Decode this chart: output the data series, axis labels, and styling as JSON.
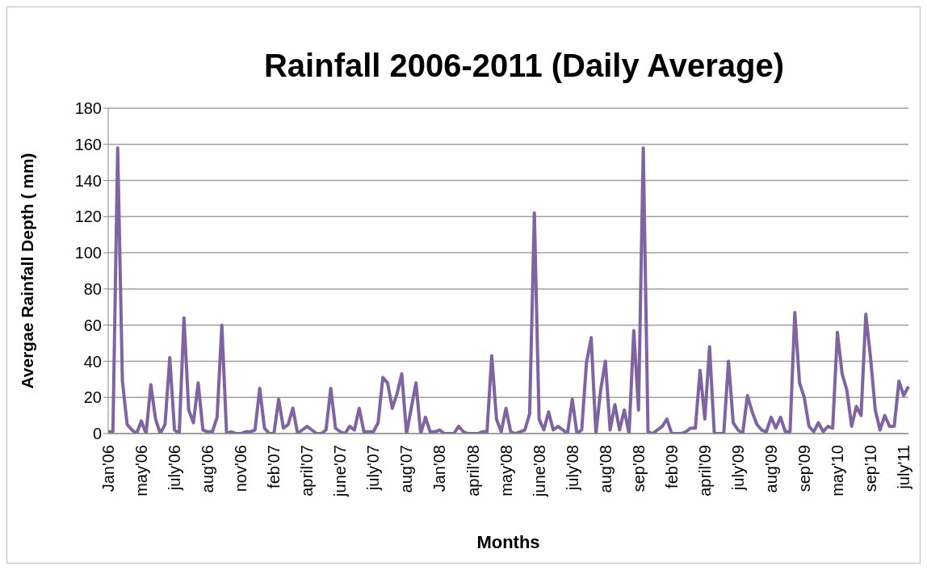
{
  "chart_data": {
    "type": "line",
    "title": "Rainfall 2006-2011 (Daily Average)",
    "xlabel": "Months",
    "ylabel": "Avergae Rainfall Depth  ( mm)",
    "categories": [
      "Jan'06",
      null,
      null,
      null,
      null,
      null,
      null,
      "may'06",
      null,
      null,
      null,
      null,
      null,
      null,
      "july'06",
      null,
      null,
      null,
      null,
      null,
      null,
      "aug'06",
      null,
      null,
      null,
      null,
      null,
      null,
      "nov'06",
      null,
      null,
      null,
      null,
      null,
      null,
      "feb'07",
      null,
      null,
      null,
      null,
      null,
      null,
      "april'07",
      null,
      null,
      null,
      null,
      null,
      null,
      "june'07",
      null,
      null,
      null,
      null,
      null,
      null,
      "july'07",
      null,
      null,
      null,
      null,
      null,
      null,
      "aug'07",
      null,
      null,
      null,
      null,
      null,
      null,
      "Jan'08",
      null,
      null,
      null,
      null,
      null,
      null,
      "april'08",
      null,
      null,
      null,
      null,
      null,
      null,
      "may'08",
      null,
      null,
      null,
      null,
      null,
      null,
      "june'08",
      null,
      null,
      null,
      null,
      null,
      null,
      "july'08",
      null,
      null,
      null,
      null,
      null,
      null,
      "aug'08",
      null,
      null,
      null,
      null,
      null,
      null,
      "sep'08",
      null,
      null,
      null,
      null,
      null,
      null,
      "feb'09",
      null,
      null,
      null,
      null,
      null,
      null,
      "april'09",
      null,
      null,
      null,
      null,
      null,
      null,
      "july'09",
      null,
      null,
      null,
      null,
      null,
      null,
      "aug'09",
      null,
      null,
      null,
      null,
      null,
      null,
      "sep'09",
      null,
      null,
      null,
      null,
      null,
      null,
      "may'10",
      null,
      null,
      null,
      null,
      null,
      null,
      "sep'10",
      null,
      null,
      null,
      null,
      null,
      null,
      "july'11",
      null
    ],
    "series": [
      {
        "color": "#8064a2",
        "values": [
          1,
          1,
          158,
          29,
          5,
          2,
          0,
          7,
          0,
          27,
          8,
          0,
          5,
          42,
          2,
          0,
          64,
          13,
          6,
          28,
          2,
          1,
          1,
          9,
          60,
          0,
          1,
          0,
          0,
          1,
          1,
          2,
          25,
          3,
          0,
          0,
          19,
          3,
          5,
          14,
          0,
          2,
          4,
          2,
          0,
          0,
          2,
          25,
          3,
          1,
          0,
          4,
          2,
          14,
          1,
          1,
          1,
          6,
          31,
          28,
          14,
          22,
          33,
          0,
          14,
          28,
          0,
          9,
          1,
          1,
          2,
          0,
          0,
          0,
          4,
          1,
          0,
          0,
          0,
          1,
          1,
          43,
          8,
          1,
          14,
          1,
          0,
          1,
          2,
          11,
          122,
          8,
          2,
          12,
          2,
          4,
          2,
          0,
          19,
          0,
          2,
          39,
          53,
          0,
          24,
          40,
          2,
          16,
          2,
          13,
          0,
          57,
          13,
          158,
          1,
          0,
          2,
          4,
          8,
          0,
          0,
          0,
          1,
          3,
          3,
          35,
          8,
          48,
          0,
          0,
          0,
          40,
          6,
          2,
          0,
          21,
          12,
          5,
          2,
          1,
          9,
          3,
          9,
          1,
          1,
          67,
          28,
          20,
          4,
          1,
          6,
          1,
          4,
          3,
          56,
          33,
          24,
          4,
          15,
          10,
          66,
          42,
          13,
          2,
          10,
          4,
          4,
          29,
          21,
          26
        ]
      }
    ],
    "ylim": [
      0,
      180
    ],
    "yticks": [
      0,
      20,
      40,
      60,
      80,
      100,
      120,
      140,
      160,
      180
    ],
    "grid": "y",
    "marker": "none",
    "line_style": "solid"
  }
}
